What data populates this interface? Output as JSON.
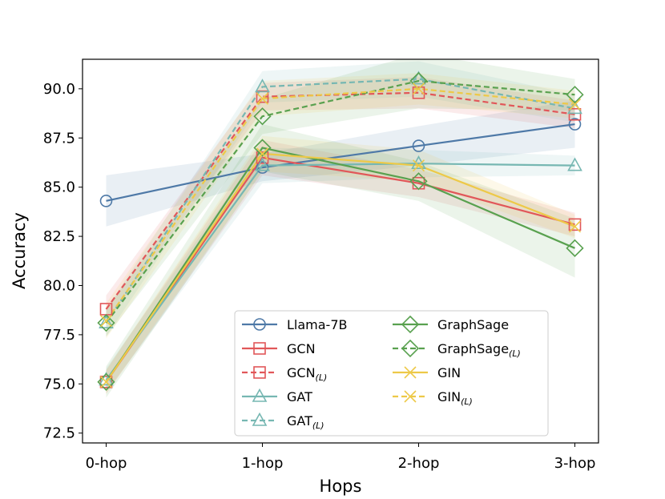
{
  "chart_data": {
    "type": "line",
    "title": "",
    "xlabel": "Hops",
    "ylabel": "Accuracy",
    "categories": [
      "0-hop",
      "1-hop",
      "2-hop",
      "3-hop"
    ],
    "ylim": [
      72,
      91.5
    ],
    "yticks": [
      "72.5",
      "75.0",
      "77.5",
      "80.0",
      "82.5",
      "85.0",
      "87.5",
      "90.0"
    ],
    "legend_position": "lower-right",
    "series": [
      {
        "name": "Llama-7B",
        "sub": "",
        "color": "#4e79a7",
        "dash": false,
        "marker": "circle",
        "values": [
          84.3,
          86.0,
          87.1,
          88.2
        ],
        "band": [
          [
            83.0,
            85.6
          ],
          [
            85.3,
            86.7
          ],
          [
            86.1,
            88.1
          ],
          [
            87.0,
            89.4
          ]
        ]
      },
      {
        "name": "GCN",
        "sub": "",
        "color": "#e15759",
        "dash": false,
        "marker": "square",
        "values": [
          75.1,
          86.5,
          85.2,
          83.1
        ],
        "band": [
          [
            74.5,
            75.7
          ],
          [
            85.6,
            87.4
          ],
          [
            84.5,
            85.9
          ],
          [
            82.5,
            83.7
          ]
        ]
      },
      {
        "name": "GCN",
        "sub": "(L)",
        "color": "#e15759",
        "dash": true,
        "marker": "square",
        "values": [
          78.8,
          89.6,
          89.8,
          88.7
        ],
        "band": [
          [
            78.1,
            79.5
          ],
          [
            88.9,
            90.3
          ],
          [
            89.0,
            90.6
          ],
          [
            88.0,
            89.4
          ]
        ]
      },
      {
        "name": "GAT",
        "sub": "",
        "color": "#76b7b2",
        "dash": false,
        "marker": "triangle",
        "values": [
          75.2,
          86.1,
          86.2,
          86.1
        ],
        "band": [
          [
            74.6,
            75.8
          ],
          [
            85.2,
            87.0
          ],
          [
            85.5,
            86.9
          ],
          [
            85.6,
            86.6
          ]
        ]
      },
      {
        "name": "GAT",
        "sub": "(L)",
        "color": "#76b7b2",
        "dash": true,
        "marker": "triangle",
        "values": [
          78.1,
          90.1,
          90.5,
          89.0
        ],
        "band": [
          [
            77.4,
            78.8
          ],
          [
            89.3,
            90.9
          ],
          [
            89.6,
            91.4
          ],
          [
            88.3,
            89.7
          ]
        ]
      },
      {
        "name": "GraphSage",
        "sub": "",
        "color": "#59a14f",
        "dash": false,
        "marker": "diamond",
        "values": [
          75.1,
          87.0,
          85.3,
          81.9
        ],
        "band": [
          [
            74.3,
            75.9
          ],
          [
            85.8,
            88.2
          ],
          [
            84.3,
            86.3
          ],
          [
            80.4,
            83.4
          ]
        ]
      },
      {
        "name": "GraphSage",
        "sub": "(L)",
        "color": "#59a14f",
        "dash": true,
        "marker": "diamond",
        "values": [
          78.1,
          88.6,
          90.4,
          89.7
        ],
        "band": [
          [
            77.4,
            78.8
          ],
          [
            87.7,
            89.5
          ],
          [
            89.0,
            91.8
          ],
          [
            88.9,
            90.5
          ]
        ]
      },
      {
        "name": "GIN",
        "sub": "",
        "color": "#edc948",
        "dash": false,
        "marker": "x",
        "values": [
          75.1,
          86.7,
          86.1,
          83.0
        ],
        "band": [
          [
            74.5,
            75.7
          ],
          [
            85.8,
            87.6
          ],
          [
            85.3,
            86.9
          ],
          [
            82.4,
            83.6
          ]
        ]
      },
      {
        "name": "GIN",
        "sub": "(L)",
        "color": "#edc948",
        "dash": true,
        "marker": "x",
        "values": [
          78.2,
          89.5,
          90.0,
          89.2
        ],
        "band": [
          [
            77.3,
            79.1
          ],
          [
            88.6,
            90.4
          ],
          [
            89.2,
            90.8
          ],
          [
            88.5,
            89.9
          ]
        ]
      }
    ]
  }
}
